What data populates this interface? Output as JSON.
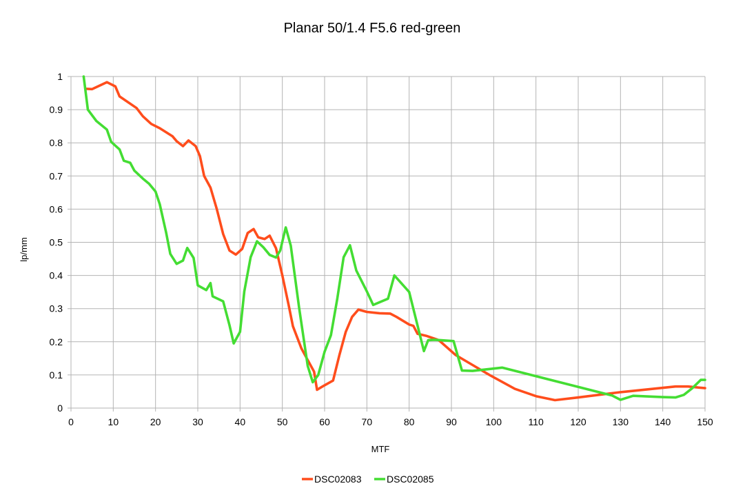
{
  "chart_data": {
    "type": "line",
    "title": "Planar 50/1.4 F5.6 red-green",
    "xlabel": "MTF",
    "ylabel": "lp/mm",
    "xlim": [
      0,
      150
    ],
    "ylim": [
      0,
      1
    ],
    "x_ticks": [
      0,
      10,
      20,
      30,
      40,
      50,
      60,
      70,
      80,
      90,
      100,
      110,
      120,
      130,
      140,
      150
    ],
    "y_ticks": [
      "0",
      "0.1",
      "0.2",
      "0.3",
      "0.4",
      "0.5",
      "0.6",
      "0.7",
      "0.8",
      "0.9",
      "1"
    ],
    "grid": true,
    "legend_position": "bottom",
    "series": [
      {
        "name": "DSC02083",
        "color": "#ff4d1c",
        "points": [
          [
            3.5,
            0.963
          ],
          [
            5,
            0.962
          ],
          [
            8.5,
            0.983
          ],
          [
            10.5,
            0.97
          ],
          [
            11.5,
            0.94
          ],
          [
            15.5,
            0.905
          ],
          [
            17,
            0.88
          ],
          [
            19,
            0.857
          ],
          [
            21,
            0.844
          ],
          [
            24,
            0.82
          ],
          [
            25,
            0.805
          ],
          [
            26.5,
            0.79
          ],
          [
            27.8,
            0.807
          ],
          [
            29.5,
            0.79
          ],
          [
            30.5,
            0.76
          ],
          [
            31.5,
            0.7
          ],
          [
            33,
            0.665
          ],
          [
            34.5,
            0.6
          ],
          [
            36,
            0.525
          ],
          [
            37.5,
            0.475
          ],
          [
            39,
            0.463
          ],
          [
            40.5,
            0.48
          ],
          [
            41.8,
            0.528
          ],
          [
            43.2,
            0.54
          ],
          [
            44.3,
            0.515
          ],
          [
            45.8,
            0.51
          ],
          [
            47,
            0.52
          ],
          [
            48.5,
            0.482
          ],
          [
            50,
            0.4
          ],
          [
            51.5,
            0.31
          ],
          [
            52.5,
            0.247
          ],
          [
            54.5,
            0.18
          ],
          [
            56,
            0.145
          ],
          [
            57.5,
            0.11
          ],
          [
            58.2,
            0.055
          ],
          [
            59.5,
            0.065
          ],
          [
            62,
            0.083
          ],
          [
            63.5,
            0.16
          ],
          [
            65,
            0.23
          ],
          [
            66.5,
            0.275
          ],
          [
            68,
            0.297
          ],
          [
            70,
            0.29
          ],
          [
            73,
            0.286
          ],
          [
            75.5,
            0.285
          ],
          [
            77,
            0.275
          ],
          [
            80,
            0.252
          ],
          [
            81,
            0.248
          ],
          [
            82,
            0.224
          ],
          [
            84,
            0.218
          ],
          [
            87,
            0.205
          ],
          [
            91,
            0.16
          ],
          [
            95,
            0.13
          ],
          [
            99,
            0.1
          ],
          [
            105,
            0.058
          ],
          [
            110,
            0.036
          ],
          [
            114.5,
            0.024
          ],
          [
            120,
            0.032
          ],
          [
            130,
            0.048
          ],
          [
            143,
            0.065
          ],
          [
            146,
            0.065
          ],
          [
            150,
            0.06
          ]
        ]
      },
      {
        "name": "DSC02085",
        "color": "#44dd33",
        "points": [
          [
            3,
            1.0
          ],
          [
            4,
            0.9
          ],
          [
            6,
            0.866
          ],
          [
            8.5,
            0.84
          ],
          [
            9.5,
            0.803
          ],
          [
            11.5,
            0.78
          ],
          [
            12.5,
            0.746
          ],
          [
            14,
            0.74
          ],
          [
            15,
            0.716
          ],
          [
            17,
            0.692
          ],
          [
            18.5,
            0.676
          ],
          [
            20,
            0.653
          ],
          [
            21,
            0.615
          ],
          [
            22.5,
            0.53
          ],
          [
            23.5,
            0.465
          ],
          [
            25,
            0.435
          ],
          [
            26.5,
            0.445
          ],
          [
            27.5,
            0.483
          ],
          [
            29,
            0.453
          ],
          [
            30,
            0.37
          ],
          [
            32,
            0.356
          ],
          [
            33,
            0.377
          ],
          [
            33.5,
            0.337
          ],
          [
            36,
            0.322
          ],
          [
            37.5,
            0.25
          ],
          [
            38.5,
            0.195
          ],
          [
            40,
            0.23
          ],
          [
            41,
            0.352
          ],
          [
            42.5,
            0.455
          ],
          [
            44,
            0.503
          ],
          [
            45.5,
            0.485
          ],
          [
            47,
            0.462
          ],
          [
            48.5,
            0.454
          ],
          [
            49.5,
            0.475
          ],
          [
            50.8,
            0.545
          ],
          [
            52,
            0.49
          ],
          [
            54,
            0.3
          ],
          [
            56,
            0.127
          ],
          [
            57.2,
            0.078
          ],
          [
            58.5,
            0.1
          ],
          [
            60,
            0.17
          ],
          [
            61.5,
            0.22
          ],
          [
            63,
            0.33
          ],
          [
            64.5,
            0.455
          ],
          [
            66,
            0.491
          ],
          [
            67.5,
            0.415
          ],
          [
            70,
            0.352
          ],
          [
            71.5,
            0.311
          ],
          [
            75,
            0.33
          ],
          [
            76.5,
            0.4
          ],
          [
            80,
            0.35
          ],
          [
            83.5,
            0.172
          ],
          [
            84.5,
            0.205
          ],
          [
            86,
            0.206
          ],
          [
            90.5,
            0.202
          ],
          [
            92.5,
            0.113
          ],
          [
            95,
            0.112
          ],
          [
            102,
            0.122
          ],
          [
            128,
            0.038
          ],
          [
            130,
            0.025
          ],
          [
            133,
            0.037
          ],
          [
            140,
            0.033
          ],
          [
            143,
            0.032
          ],
          [
            145,
            0.04
          ],
          [
            147,
            0.06
          ],
          [
            149,
            0.085
          ],
          [
            150,
            0.085
          ]
        ]
      }
    ]
  }
}
